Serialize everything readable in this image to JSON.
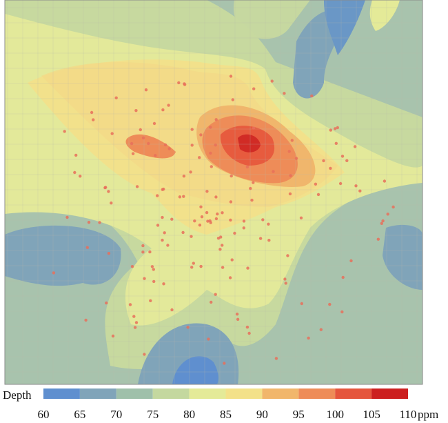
{
  "legend": {
    "title": "Depth",
    "unit": "ppm",
    "ticks": [
      60,
      65,
      70,
      75,
      80,
      85,
      90,
      95,
      100,
      105,
      110
    ],
    "colors": [
      "#5f8fcf",
      "#80a4b9",
      "#9fc0aa",
      "#c4d89f",
      "#e4ea98",
      "#f3e189",
      "#f1b66b",
      "#ee8c58",
      "#e5553c",
      "#cc1f1f"
    ]
  }
}
